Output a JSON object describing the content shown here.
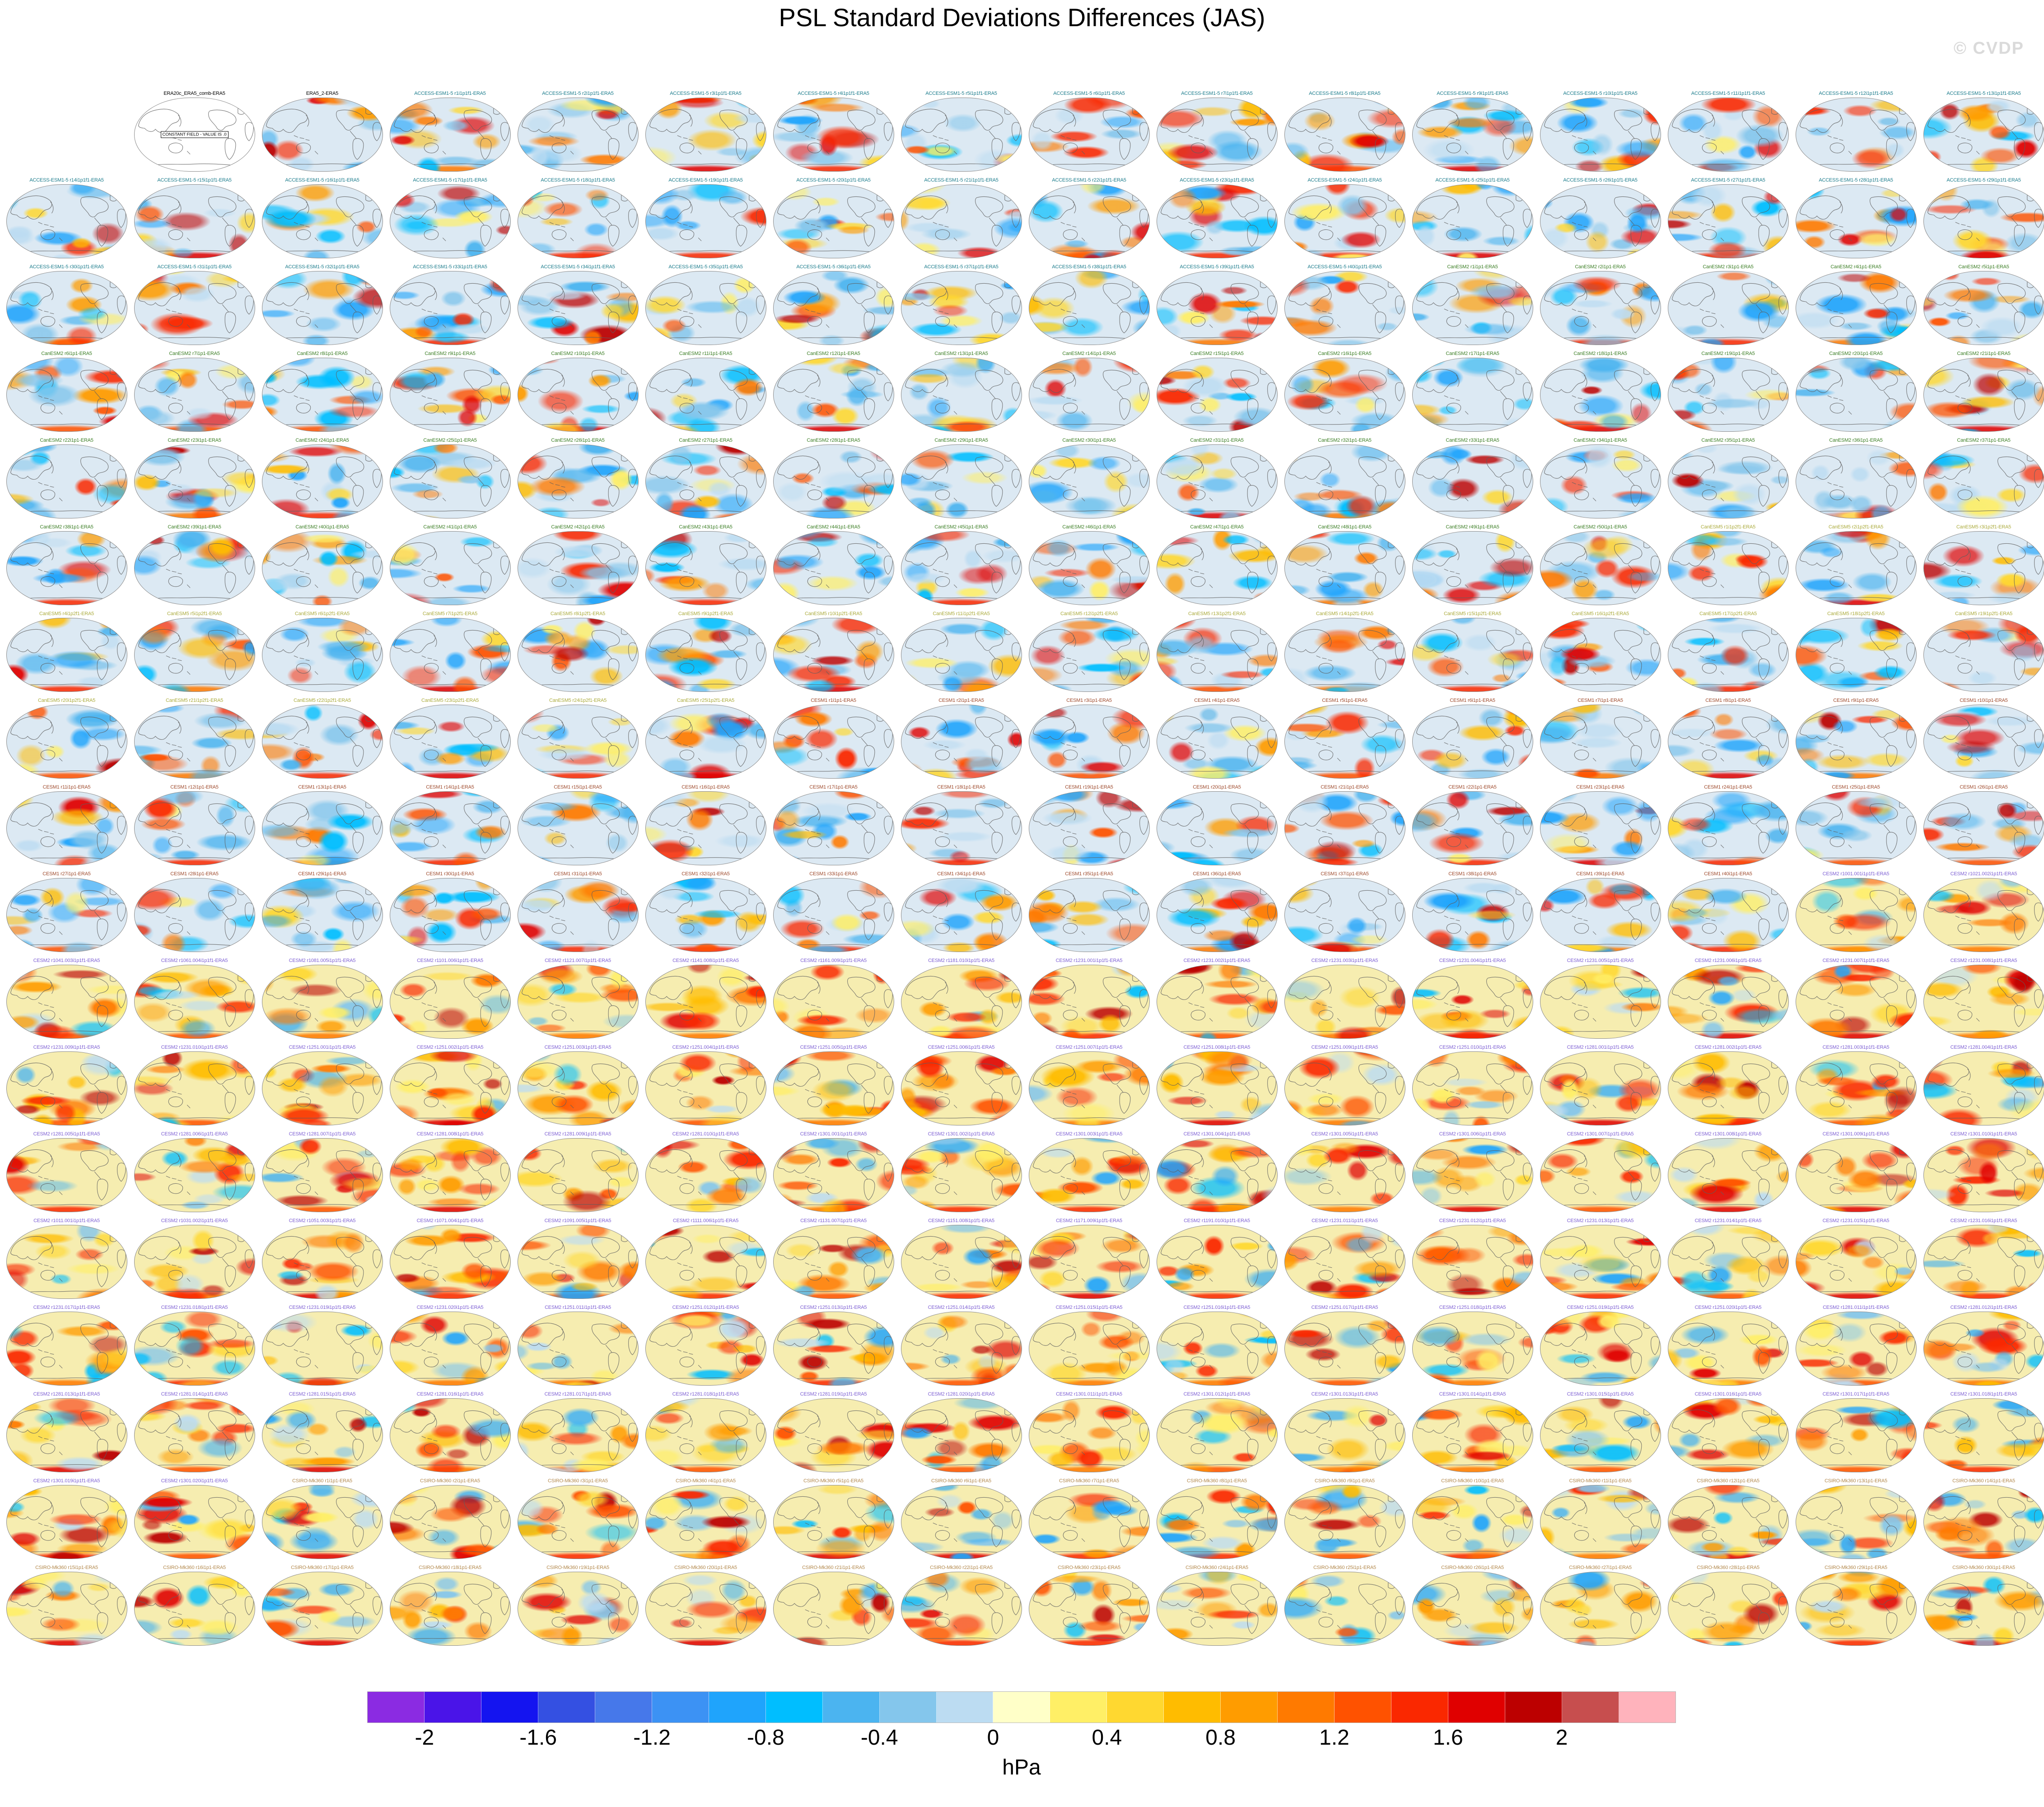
{
  "title": "PSL Standard Deviations Differences (JAS)",
  "watermark": "© CVDP",
  "grid": {
    "columns": 16,
    "lead_empty_cells": 1
  },
  "colorbar": {
    "unit": "hPa",
    "ticks": [
      "-2",
      "-1.6",
      "-1.2",
      "-0.8",
      "-0.4",
      "0",
      "0.4",
      "0.8",
      "1.2",
      "1.6",
      "2"
    ],
    "colors": [
      "#8B2BE2",
      "#4A14E8",
      "#1414F0",
      "#3450E2",
      "#4678EA",
      "#3C92F4",
      "#1FA4FC",
      "#00BEFF",
      "#4BB4F0",
      "#84C6EC",
      "#BCDCF2",
      "#FFFFC8",
      "#FFEF66",
      "#FFD830",
      "#FFBC00",
      "#FF9C00",
      "#FF7A00",
      "#FF5200",
      "#FA2800",
      "#E00000",
      "#BC0000",
      "#C74E4E",
      "#FFB3BC"
    ]
  },
  "chart_data": {
    "type": "heatmap",
    "title": "PSL Standard Deviations Differences (JAS)",
    "units": "hPa",
    "colorbar_tick_values": [
      -2,
      -1.6,
      -1.2,
      -0.8,
      -0.4,
      0,
      0.4,
      0.8,
      1.2,
      1.6,
      2
    ],
    "value_range": [
      -2.2,
      2.2
    ],
    "contour_interval": 0.2,
    "n_panels": 287,
    "layout": {
      "rows": 18,
      "columns": 16,
      "first_cell_empty": true
    },
    "panel_note": "Each panel is a Pacific-centered global map of model-minus-ERA5 PSL standard deviation differences; panel labels listed in panel_groups."
  },
  "constant_field_panel": {
    "label": "ERA20c_ERA5_comb-ERA5",
    "note": "CONSTANT FIELD - VALUE IS .0"
  },
  "panel_groups": [
    {
      "name": "ERA20c_ERA5_comb",
      "label_color": "#000000",
      "constant_field": true,
      "note": "CONSTANT FIELD - VALUE IS .0",
      "labels": [
        "ERA20c_ERA5_comb-ERA5"
      ]
    },
    {
      "name": "ERA5_2",
      "label_color": "#000000",
      "labels": [
        "ERA5_2-ERA5"
      ]
    },
    {
      "name": "ACCESS-ESM1-5",
      "label_color": "#1C7C8C",
      "labels": [
        "ACCESS-ESM1-5 r1i1p1f1-ERA5",
        "ACCESS-ESM1-5 r2i1p1f1-ERA5",
        "ACCESS-ESM1-5 r3i1p1f1-ERA5",
        "ACCESS-ESM1-5 r4i1p1f1-ERA5",
        "ACCESS-ESM1-5 r5i1p1f1-ERA5",
        "ACCESS-ESM1-5 r6i1p1f1-ERA5",
        "ACCESS-ESM1-5 r7i1p1f1-ERA5",
        "ACCESS-ESM1-5 r8i1p1f1-ERA5",
        "ACCESS-ESM1-5 r9i1p1f1-ERA5",
        "ACCESS-ESM1-5 r10i1p1f1-ERA5",
        "ACCESS-ESM1-5 r11i1p1f1-ERA5",
        "ACCESS-ESM1-5 r12i1p1f1-ERA5",
        "ACCESS-ESM1-5 r13i1p1f1-ERA5",
        "ACCESS-ESM1-5 r14i1p1f1-ERA5",
        "ACCESS-ESM1-5 r15i1p1f1-ERA5",
        "ACCESS-ESM1-5 r16i1p1f1-ERA5",
        "ACCESS-ESM1-5 r17i1p1f1-ERA5",
        "ACCESS-ESM1-5 r18i1p1f1-ERA5",
        "ACCESS-ESM1-5 r19i1p1f1-ERA5",
        "ACCESS-ESM1-5 r20i1p1f1-ERA5",
        "ACCESS-ESM1-5 r21i1p1f1-ERA5",
        "ACCESS-ESM1-5 r22i1p1f1-ERA5",
        "ACCESS-ESM1-5 r23i1p1f1-ERA5",
        "ACCESS-ESM1-5 r24i1p1f1-ERA5",
        "ACCESS-ESM1-5 r25i1p1f1-ERA5",
        "ACCESS-ESM1-5 r26i1p1f1-ERA5",
        "ACCESS-ESM1-5 r27i1p1f1-ERA5",
        "ACCESS-ESM1-5 r28i1p1f1-ERA5",
        "ACCESS-ESM1-5 r29i1p1f1-ERA5",
        "ACCESS-ESM1-5 r30i1p1f1-ERA5",
        "ACCESS-ESM1-5 r31i1p1f1-ERA5",
        "ACCESS-ESM1-5 r32i1p1f1-ERA5",
        "ACCESS-ESM1-5 r33i1p1f1-ERA5",
        "ACCESS-ESM1-5 r34i1p1f1-ERA5",
        "ACCESS-ESM1-5 r35i1p1f1-ERA5",
        "ACCESS-ESM1-5 r36i1p1f1-ERA5",
        "ACCESS-ESM1-5 r37i1p1f1-ERA5",
        "ACCESS-ESM1-5 r38i1p1f1-ERA5",
        "ACCESS-ESM1-5 r39i1p1f1-ERA5",
        "ACCESS-ESM1-5 r40i1p1f1-ERA5"
      ]
    },
    {
      "name": "CanESM2",
      "label_color": "#3A7D23",
      "labels": [
        "CanESM2 r1i1p1-ERA5",
        "CanESM2 r2i1p1-ERA5",
        "CanESM2 r3i1p1-ERA5",
        "CanESM2 r4i1p1-ERA5",
        "CanESM2 r5i1p1-ERA5",
        "CanESM2 r6i1p1-ERA5",
        "CanESM2 r7i1p1-ERA5",
        "CanESM2 r8i1p1-ERA5",
        "CanESM2 r9i1p1-ERA5",
        "CanESM2 r10i1p1-ERA5",
        "CanESM2 r11i1p1-ERA5",
        "CanESM2 r12i1p1-ERA5",
        "CanESM2 r13i1p1-ERA5",
        "CanESM2 r14i1p1-ERA5",
        "CanESM2 r15i1p1-ERA5",
        "CanESM2 r16i1p1-ERA5",
        "CanESM2 r17i1p1-ERA5",
        "CanESM2 r18i1p1-ERA5",
        "CanESM2 r19i1p1-ERA5",
        "CanESM2 r20i1p1-ERA5",
        "CanESM2 r21i1p1-ERA5",
        "CanESM2 r22i1p1-ERA5",
        "CanESM2 r23i1p1-ERA5",
        "CanESM2 r24i1p1-ERA5",
        "CanESM2 r25i1p1-ERA5",
        "CanESM2 r26i1p1-ERA5",
        "CanESM2 r27i1p1-ERA5",
        "CanESM2 r28i1p1-ERA5",
        "CanESM2 r29i1p1-ERA5",
        "CanESM2 r30i1p1-ERA5",
        "CanESM2 r31i1p1-ERA5",
        "CanESM2 r32i1p1-ERA5",
        "CanESM2 r33i1p1-ERA5",
        "CanESM2 r34i1p1-ERA5",
        "CanESM2 r35i1p1-ERA5",
        "CanESM2 r36i1p1-ERA5",
        "CanESM2 r37i1p1-ERA5",
        "CanESM2 r38i1p1-ERA5",
        "CanESM2 r39i1p1-ERA5",
        "CanESM2 r40i1p1-ERA5",
        "CanESM2 r41i1p1-ERA5",
        "CanESM2 r42i1p1-ERA5",
        "CanESM2 r43i1p1-ERA5",
        "CanESM2 r44i1p1-ERA5",
        "CanESM2 r45i1p1-ERA5",
        "CanESM2 r46i1p1-ERA5",
        "CanESM2 r47i1p1-ERA5",
        "CanESM2 r48i1p1-ERA5",
        "CanESM2 r49i1p1-ERA5",
        "CanESM2 r50i1p1-ERA5"
      ]
    },
    {
      "name": "CanESM5",
      "label_color": "#ABAB3C",
      "labels": [
        "CanESM5 r1i1p2f1-ERA5",
        "CanESM5 r2i1p2f1-ERA5",
        "CanESM5 r3i1p2f1-ERA5",
        "CanESM5 r4i1p2f1-ERA5",
        "CanESM5 r5i1p2f1-ERA5",
        "CanESM5 r6i1p2f1-ERA5",
        "CanESM5 r7i1p2f1-ERA5",
        "CanESM5 r8i1p2f1-ERA5",
        "CanESM5 r9i1p2f1-ERA5",
        "CanESM5 r10i1p2f1-ERA5",
        "CanESM5 r11i1p2f1-ERA5",
        "CanESM5 r12i1p2f1-ERA5",
        "CanESM5 r13i1p2f1-ERA5",
        "CanESM5 r14i1p2f1-ERA5",
        "CanESM5 r15i1p2f1-ERA5",
        "CanESM5 r16i1p2f1-ERA5",
        "CanESM5 r17i1p2f1-ERA5",
        "CanESM5 r18i1p2f1-ERA5",
        "CanESM5 r19i1p2f1-ERA5",
        "CanESM5 r20i1p2f1-ERA5",
        "CanESM5 r21i1p2f1-ERA5",
        "CanESM5 r22i1p2f1-ERA5",
        "CanESM5 r23i1p2f1-ERA5",
        "CanESM5 r24i1p2f1-ERA5",
        "CanESM5 r25i1p2f1-ERA5"
      ]
    },
    {
      "name": "CESM1",
      "label_color": "#9E4A2C",
      "labels": [
        "CESM1 r1i1p1-ERA5",
        "CESM1 r2i1p1-ERA5",
        "CESM1 r3i1p1-ERA5",
        "CESM1 r4i1p1-ERA5",
        "CESM1 r5i1p1-ERA5",
        "CESM1 r6i1p1-ERA5",
        "CESM1 r7i1p1-ERA5",
        "CESM1 r8i1p1-ERA5",
        "CESM1 r9i1p1-ERA5",
        "CESM1 r10i1p1-ERA5",
        "CESM1 r11i1p1-ERA5",
        "CESM1 r12i1p1-ERA5",
        "CESM1 r13i1p1-ERA5",
        "CESM1 r14i1p1-ERA5",
        "CESM1 r15i1p1-ERA5",
        "CESM1 r16i1p1-ERA5",
        "CESM1 r17i1p1-ERA5",
        "CESM1 r18i1p1-ERA5",
        "CESM1 r19i1p1-ERA5",
        "CESM1 r20i1p1-ERA5",
        "CESM1 r21i1p1-ERA5",
        "CESM1 r22i1p1-ERA5",
        "CESM1 r23i1p1-ERA5",
        "CESM1 r24i1p1-ERA5",
        "CESM1 r25i1p1-ERA5",
        "CESM1 r26i1p1-ERA5",
        "CESM1 r27i1p1-ERA5",
        "CESM1 r28i1p1-ERA5",
        "CESM1 r29i1p1-ERA5",
        "CESM1 r30i1p1-ERA5",
        "CESM1 r31i1p1-ERA5",
        "CESM1 r32i1p1-ERA5",
        "CESM1 r33i1p1-ERA5",
        "CESM1 r34i1p1-ERA5",
        "CESM1 r35i1p1-ERA5",
        "CESM1 r36i1p1-ERA5",
        "CESM1 r37i1p1-ERA5",
        "CESM1 r38i1p1-ERA5",
        "CESM1 r39i1p1-ERA5",
        "CESM1 r40i1p1-ERA5"
      ]
    },
    {
      "name": "CESM2",
      "label_color": "#7D5FD3",
      "labels": [
        "CESM2 r1001.001i1p1f1-ERA5",
        "CESM2 r1021.002i1p1f1-ERA5",
        "CESM2 r1041.003i1p1f1-ERA5",
        "CESM2 r1061.004i1p1f1-ERA5",
        "CESM2 r1081.005i1p1f1-ERA5",
        "CESM2 r1101.006i1p1f1-ERA5",
        "CESM2 r1121.007i1p1f1-ERA5",
        "CESM2 r1141.008i1p1f1-ERA5",
        "CESM2 r1161.009i1p1f1-ERA5",
        "CESM2 r1181.010i1p1f1-ERA5",
        "CESM2 r1231.001i1p1f1-ERA5",
        "CESM2 r1231.002i1p1f1-ERA5",
        "CESM2 r1231.003i1p1f1-ERA5",
        "CESM2 r1231.004i1p1f1-ERA5",
        "CESM2 r1231.005i1p1f1-ERA5",
        "CESM2 r1231.006i1p1f1-ERA5",
        "CESM2 r1231.007i1p1f1-ERA5",
        "CESM2 r1231.008i1p1f1-ERA5",
        "CESM2 r1231.009i1p1f1-ERA5",
        "CESM2 r1231.010i1p1f1-ERA5",
        "CESM2 r1251.001i1p1f1-ERA5",
        "CESM2 r1251.002i1p1f1-ERA5",
        "CESM2 r1251.003i1p1f1-ERA5",
        "CESM2 r1251.004i1p1f1-ERA5",
        "CESM2 r1251.005i1p1f1-ERA5",
        "CESM2 r1251.006i1p1f1-ERA5",
        "CESM2 r1251.007i1p1f1-ERA5",
        "CESM2 r1251.008i1p1f1-ERA5",
        "CESM2 r1251.009i1p1f1-ERA5",
        "CESM2 r1251.010i1p1f1-ERA5",
        "CESM2 r1281.001i1p1f1-ERA5",
        "CESM2 r1281.002i1p1f1-ERA5",
        "CESM2 r1281.003i1p1f1-ERA5",
        "CESM2 r1281.004i1p1f1-ERA5",
        "CESM2 r1281.005i1p1f1-ERA5",
        "CESM2 r1281.006i1p1f1-ERA5",
        "CESM2 r1281.007i1p1f1-ERA5",
        "CESM2 r1281.008i1p1f1-ERA5",
        "CESM2 r1281.009i1p1f1-ERA5",
        "CESM2 r1281.010i1p1f1-ERA5",
        "CESM2 r1301.001i1p1f1-ERA5",
        "CESM2 r1301.002i1p1f1-ERA5",
        "CESM2 r1301.003i1p1f1-ERA5",
        "CESM2 r1301.004i1p1f1-ERA5",
        "CESM2 r1301.005i1p1f1-ERA5",
        "CESM2 r1301.006i1p1f1-ERA5",
        "CESM2 r1301.007i1p1f1-ERA5",
        "CESM2 r1301.008i1p1f1-ERA5",
        "CESM2 r1301.009i1p1f1-ERA5",
        "CESM2 r1301.010i1p1f1-ERA5",
        "CESM2 r1011.001i1p1f1-ERA5",
        "CESM2 r1031.002i1p1f1-ERA5",
        "CESM2 r1051.003i1p1f1-ERA5",
        "CESM2 r1071.004i1p1f1-ERA5",
        "CESM2 r1091.005i1p1f1-ERA5",
        "CESM2 r1111.006i1p1f1-ERA5",
        "CESM2 r1131.007i1p1f1-ERA5",
        "CESM2 r1151.008i1p1f1-ERA5",
        "CESM2 r1171.009i1p1f1-ERA5",
        "CESM2 r1191.010i1p1f1-ERA5",
        "CESM2 r1231.011i1p1f1-ERA5",
        "CESM2 r1231.012i1p1f1-ERA5",
        "CESM2 r1231.013i1p1f1-ERA5",
        "CESM2 r1231.014i1p1f1-ERA5",
        "CESM2 r1231.015i1p1f1-ERA5",
        "CESM2 r1231.016i1p1f1-ERA5",
        "CESM2 r1231.017i1p1f1-ERA5",
        "CESM2 r1231.018i1p1f1-ERA5",
        "CESM2 r1231.019i1p1f1-ERA5",
        "CESM2 r1231.020i1p1f1-ERA5",
        "CESM2 r1251.011i1p1f1-ERA5",
        "CESM2 r1251.012i1p1f1-ERA5",
        "CESM2 r1251.013i1p1f1-ERA5",
        "CESM2 r1251.014i1p1f1-ERA5",
        "CESM2 r1251.015i1p1f1-ERA5",
        "CESM2 r1251.016i1p1f1-ERA5",
        "CESM2 r1251.017i1p1f1-ERA5",
        "CESM2 r1251.018i1p1f1-ERA5",
        "CESM2 r1251.019i1p1f1-ERA5",
        "CESM2 r1251.020i1p1f1-ERA5",
        "CESM2 r1281.011i1p1f1-ERA5",
        "CESM2 r1281.012i1p1f1-ERA5",
        "CESM2 r1281.013i1p1f1-ERA5",
        "CESM2 r1281.014i1p1f1-ERA5",
        "CESM2 r1281.015i1p1f1-ERA5",
        "CESM2 r1281.016i1p1f1-ERA5",
        "CESM2 r1281.017i1p1f1-ERA5",
        "CESM2 r1281.018i1p1f1-ERA5",
        "CESM2 r1281.019i1p1f1-ERA5",
        "CESM2 r1281.020i1p1f1-ERA5",
        "CESM2 r1301.011i1p1f1-ERA5",
        "CESM2 r1301.012i1p1f1-ERA5",
        "CESM2 r1301.013i1p1f1-ERA5",
        "CESM2 r1301.014i1p1f1-ERA5",
        "CESM2 r1301.015i1p1f1-ERA5",
        "CESM2 r1301.016i1p1f1-ERA5",
        "CESM2 r1301.017i1p1f1-ERA5",
        "CESM2 r1301.018i1p1f1-ERA5",
        "CESM2 r1301.019i1p1f1-ERA5",
        "CESM2 r1301.020i1p1f1-ERA5"
      ]
    },
    {
      "name": "CSIRO-Mk360",
      "label_color": "#B3894D",
      "labels": [
        "CSIRO-Mk360 r1i1p1-ERA5",
        "CSIRO-Mk360 r2i1p1-ERA5",
        "CSIRO-Mk360 r3i1p1-ERA5",
        "CSIRO-Mk360 r4i1p1-ERA5",
        "CSIRO-Mk360 r5i1p1-ERA5",
        "CSIRO-Mk360 r6i1p1-ERA5",
        "CSIRO-Mk360 r7i1p1-ERA5",
        "CSIRO-Mk360 r8i1p1-ERA5",
        "CSIRO-Mk360 r9i1p1-ERA5",
        "CSIRO-Mk360 r10i1p1-ERA5",
        "CSIRO-Mk360 r11i1p1-ERA5",
        "CSIRO-Mk360 r12i1p1-ERA5",
        "CSIRO-Mk360 r13i1p1-ERA5",
        "CSIRO-Mk360 r14i1p1-ERA5",
        "CSIRO-Mk360 r15i1p1-ERA5",
        "CSIRO-Mk360 r16i1p1-ERA5",
        "CSIRO-Mk360 r17i1p1-ERA5",
        "CSIRO-Mk360 r18i1p1-ERA5",
        "CSIRO-Mk360 r19i1p1-ERA5",
        "CSIRO-Mk360 r20i1p1-ERA5",
        "CSIRO-Mk360 r21i1p1-ERA5",
        "CSIRO-Mk360 r22i1p1-ERA5",
        "CSIRO-Mk360 r23i1p1-ERA5",
        "CSIRO-Mk360 r24i1p1-ERA5",
        "CSIRO-Mk360 r25i1p1-ERA5",
        "CSIRO-Mk360 r26i1p1-ERA5",
        "CSIRO-Mk360 r27i1p1-ERA5",
        "CSIRO-Mk360 r28i1p1-ERA5",
        "CSIRO-Mk360 r29i1p1-ERA5",
        "CSIRO-Mk360 r30i1p1-ERA5"
      ]
    }
  ]
}
